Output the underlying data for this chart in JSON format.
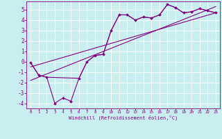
{
  "bg_color": "#c8eef0",
  "grid_color": "#ffffff",
  "line_color": "#800080",
  "marker_color": "#800080",
  "xlabel": "Windchill (Refroidissement éolien,°C)",
  "tick_color": "#800080",
  "xlim": [
    -0.5,
    23.5
  ],
  "ylim": [
    -4.5,
    5.8
  ],
  "yticks": [
    -4,
    -3,
    -2,
    -1,
    0,
    1,
    2,
    3,
    4,
    5
  ],
  "xticks": [
    0,
    1,
    2,
    3,
    4,
    5,
    6,
    7,
    8,
    9,
    10,
    11,
    12,
    13,
    14,
    15,
    16,
    17,
    18,
    19,
    20,
    21,
    22,
    23
  ],
  "series1_x": [
    0,
    1,
    2,
    3,
    4,
    5,
    6,
    7,
    8,
    9,
    10,
    11,
    12,
    13,
    14,
    15,
    16,
    17,
    18,
    19,
    20,
    21,
    22,
    23
  ],
  "series1_y": [
    -0.1,
    -1.3,
    -1.5,
    -4.0,
    -3.5,
    -3.8,
    -1.6,
    0.0,
    0.6,
    0.7,
    3.0,
    4.5,
    4.5,
    4.0,
    4.3,
    4.2,
    4.5,
    5.5,
    5.2,
    4.7,
    4.8,
    5.1,
    4.9,
    4.7
  ],
  "series2_x": [
    0,
    1,
    2,
    6,
    7,
    8,
    9,
    10,
    11,
    12,
    13,
    14,
    15,
    16,
    17,
    18,
    19,
    20,
    21,
    22,
    23
  ],
  "series2_y": [
    -0.1,
    -1.3,
    -1.5,
    -1.6,
    0.0,
    0.6,
    0.7,
    3.0,
    4.5,
    4.5,
    4.0,
    4.3,
    4.2,
    4.5,
    5.5,
    5.2,
    4.7,
    4.8,
    5.1,
    4.9,
    4.7
  ],
  "line3_x": [
    0,
    23
  ],
  "line3_y": [
    -0.5,
    4.7
  ],
  "line4_x": [
    0,
    23
  ],
  "line4_y": [
    -1.8,
    5.3
  ]
}
